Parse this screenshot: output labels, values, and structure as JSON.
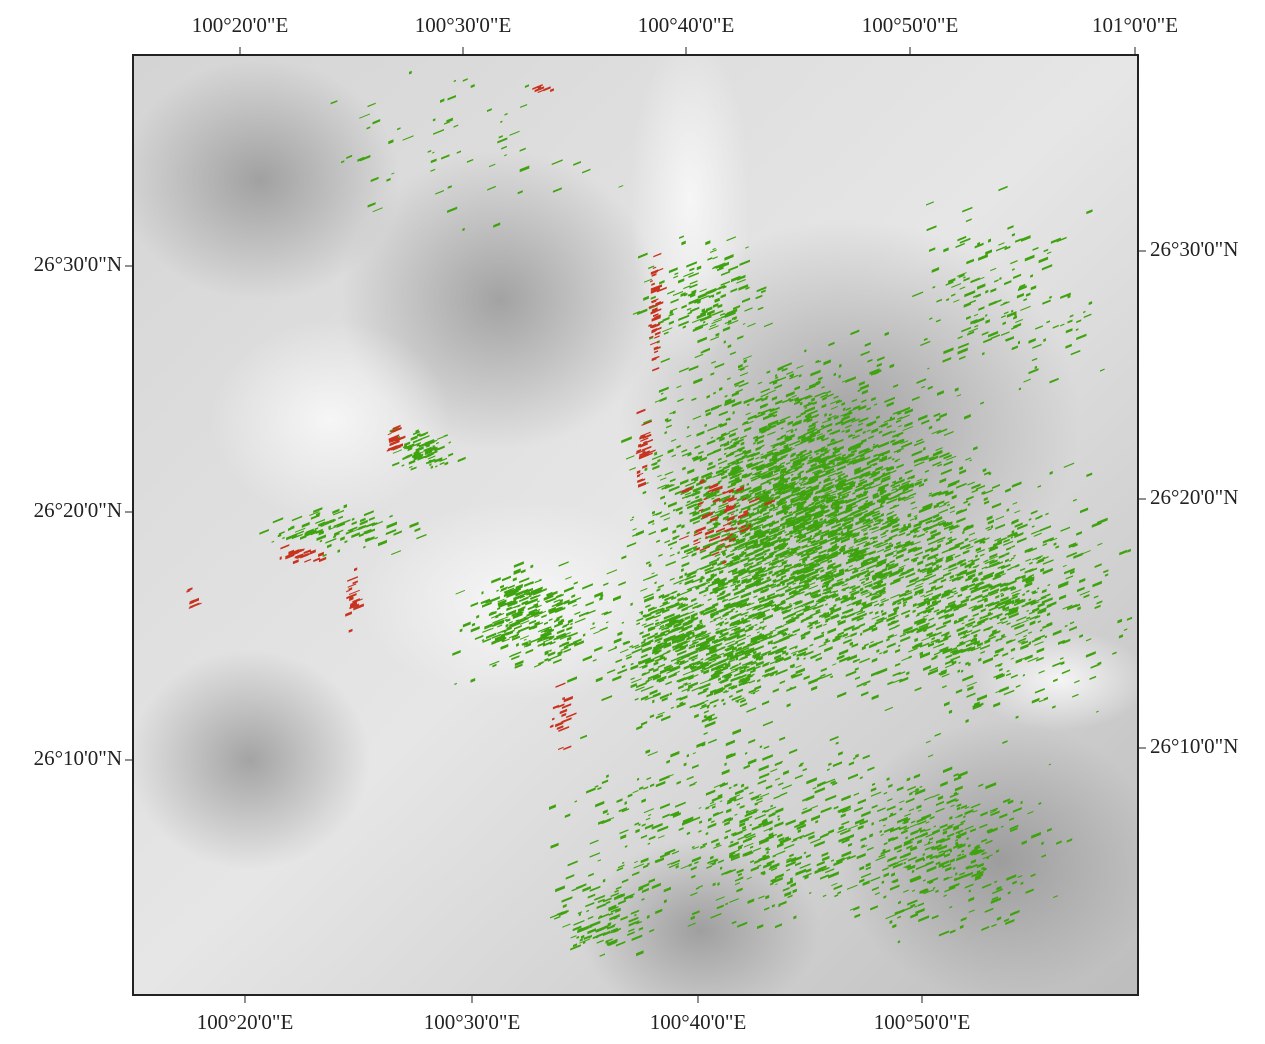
{
  "map": {
    "top_labels": [
      "100°20'0\"E",
      "100°30'0\"E",
      "100°40'0\"E",
      "100°50'0\"E",
      "101°0'0\"E"
    ],
    "bottom_labels": [
      "100°20'0\"E",
      "100°30'0\"E",
      "100°40'0\"E",
      "100°50'0\"E"
    ],
    "left_labels": [
      "26°30'0\"N",
      "26°20'0\"N",
      "26°10'0\"N"
    ],
    "right_labels": [
      "26°30'0\"N",
      "26°20'0\"N",
      "26°10'0\"N"
    ]
  }
}
